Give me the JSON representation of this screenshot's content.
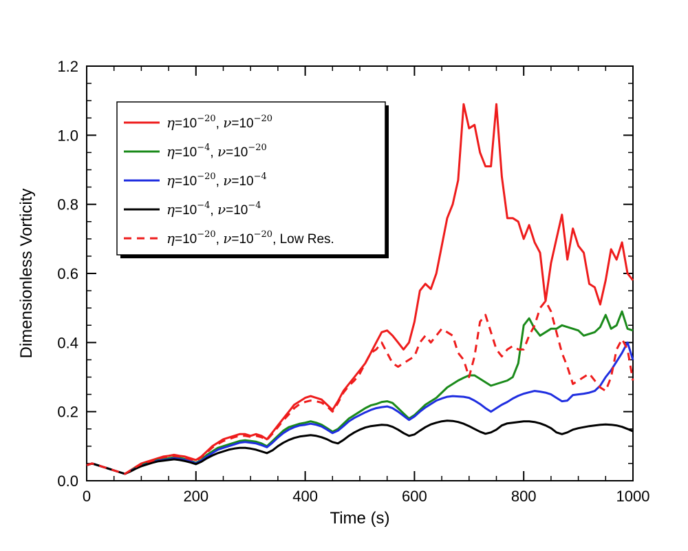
{
  "chart_data": {
    "type": "line",
    "title": "",
    "xlabel": "Time (s)",
    "ylabel": "Dimensionless Vorticity",
    "xlim": [
      0,
      1000
    ],
    "ylim": [
      0,
      1.2
    ],
    "xticks": [
      0,
      200,
      400,
      600,
      800,
      1000
    ],
    "xtick_labels": [
      "0",
      "200",
      "400",
      "600",
      "800",
      "1000"
    ],
    "yticks": [
      0,
      0.2,
      0.4,
      0.6,
      0.8,
      1.0,
      1.2
    ],
    "ytick_labels": [
      "0.0",
      "0.2",
      "0.4",
      "0.6",
      "0.8",
      "1.0",
      "1.2"
    ],
    "legend_position": "top-left",
    "series": [
      {
        "name": "η=10^-20, ν=10^-20",
        "legend": {
          "eta_exp": "−20",
          "nu_exp": "−20",
          "suffix": ""
        },
        "color": "#ee1c1c",
        "dash": "solid",
        "x": [
          0,
          10,
          20,
          30,
          40,
          50,
          60,
          70,
          80,
          90,
          100,
          110,
          120,
          130,
          140,
          150,
          160,
          170,
          180,
          190,
          200,
          210,
          220,
          230,
          240,
          250,
          260,
          270,
          280,
          290,
          300,
          310,
          320,
          330,
          340,
          350,
          360,
          370,
          380,
          390,
          400,
          410,
          420,
          430,
          440,
          450,
          460,
          470,
          480,
          490,
          500,
          510,
          520,
          530,
          540,
          550,
          560,
          570,
          580,
          590,
          600,
          610,
          620,
          630,
          640,
          650,
          660,
          670,
          680,
          690,
          700,
          710,
          720,
          730,
          740,
          750,
          760,
          770,
          780,
          790,
          800,
          810,
          820,
          830,
          840,
          850,
          860,
          870,
          880,
          890,
          900,
          910,
          920,
          930,
          940,
          950,
          960,
          970,
          980,
          990,
          1000
        ],
        "y": [
          0.045,
          0.05,
          0.045,
          0.04,
          0.035,
          0.03,
          0.025,
          0.02,
          0.03,
          0.04,
          0.05,
          0.055,
          0.06,
          0.065,
          0.07,
          0.072,
          0.075,
          0.072,
          0.07,
          0.065,
          0.06,
          0.07,
          0.085,
          0.1,
          0.11,
          0.12,
          0.125,
          0.13,
          0.135,
          0.135,
          0.13,
          0.135,
          0.13,
          0.12,
          0.14,
          0.16,
          0.18,
          0.2,
          0.22,
          0.23,
          0.24,
          0.245,
          0.24,
          0.235,
          0.22,
          0.205,
          0.23,
          0.26,
          0.28,
          0.3,
          0.32,
          0.34,
          0.37,
          0.4,
          0.43,
          0.435,
          0.42,
          0.4,
          0.38,
          0.4,
          0.46,
          0.55,
          0.57,
          0.555,
          0.6,
          0.68,
          0.76,
          0.8,
          0.87,
          1.09,
          1.02,
          1.03,
          0.95,
          0.91,
          0.91,
          1.09,
          0.88,
          0.76,
          0.76,
          0.75,
          0.7,
          0.74,
          0.69,
          0.66,
          0.52,
          0.63,
          0.7,
          0.77,
          0.64,
          0.73,
          0.68,
          0.66,
          0.57,
          0.56,
          0.51,
          0.58,
          0.67,
          0.64,
          0.69,
          0.6,
          0.58
        ]
      },
      {
        "name": "η=10^-4, ν=10^-20",
        "legend": {
          "eta_exp": "−4",
          "nu_exp": "−20",
          "suffix": ""
        },
        "color": "#1a8a1a",
        "dash": "solid",
        "x": [
          0,
          10,
          20,
          30,
          40,
          50,
          60,
          70,
          80,
          90,
          100,
          110,
          120,
          130,
          140,
          150,
          160,
          170,
          180,
          190,
          200,
          210,
          220,
          230,
          240,
          250,
          260,
          270,
          280,
          290,
          300,
          310,
          320,
          330,
          340,
          350,
          360,
          370,
          380,
          390,
          400,
          410,
          420,
          430,
          440,
          450,
          460,
          470,
          480,
          490,
          500,
          510,
          520,
          530,
          540,
          550,
          560,
          570,
          580,
          590,
          600,
          610,
          620,
          630,
          640,
          650,
          660,
          670,
          680,
          690,
          700,
          710,
          720,
          730,
          740,
          750,
          760,
          770,
          780,
          790,
          800,
          810,
          820,
          830,
          840,
          850,
          860,
          870,
          880,
          890,
          900,
          910,
          920,
          930,
          940,
          950,
          960,
          970,
          980,
          990,
          1000
        ],
        "y": [
          0.045,
          0.05,
          0.045,
          0.04,
          0.035,
          0.03,
          0.025,
          0.02,
          0.028,
          0.038,
          0.045,
          0.05,
          0.055,
          0.06,
          0.062,
          0.065,
          0.068,
          0.066,
          0.063,
          0.058,
          0.052,
          0.06,
          0.075,
          0.085,
          0.095,
          0.1,
          0.105,
          0.11,
          0.115,
          0.117,
          0.115,
          0.113,
          0.108,
          0.1,
          0.115,
          0.13,
          0.145,
          0.155,
          0.16,
          0.165,
          0.168,
          0.172,
          0.168,
          0.162,
          0.152,
          0.142,
          0.15,
          0.165,
          0.18,
          0.19,
          0.2,
          0.21,
          0.218,
          0.222,
          0.228,
          0.23,
          0.225,
          0.21,
          0.195,
          0.18,
          0.19,
          0.205,
          0.22,
          0.23,
          0.24,
          0.255,
          0.27,
          0.28,
          0.29,
          0.298,
          0.305,
          0.305,
          0.295,
          0.285,
          0.275,
          0.28,
          0.285,
          0.29,
          0.3,
          0.34,
          0.45,
          0.47,
          0.44,
          0.42,
          0.43,
          0.44,
          0.44,
          0.45,
          0.445,
          0.44,
          0.435,
          0.42,
          0.425,
          0.43,
          0.445,
          0.48,
          0.44,
          0.45,
          0.49,
          0.44,
          0.435
        ]
      },
      {
        "name": "η=10^-20, ν=10^-4",
        "legend": {
          "eta_exp": "−20",
          "nu_exp": "−4",
          "suffix": ""
        },
        "color": "#1f2ee0",
        "dash": "solid",
        "x": [
          0,
          10,
          20,
          30,
          40,
          50,
          60,
          70,
          80,
          90,
          100,
          110,
          120,
          130,
          140,
          150,
          160,
          170,
          180,
          190,
          200,
          210,
          220,
          230,
          240,
          250,
          260,
          270,
          280,
          290,
          300,
          310,
          320,
          330,
          340,
          350,
          360,
          370,
          380,
          390,
          400,
          410,
          420,
          430,
          440,
          450,
          460,
          470,
          480,
          490,
          500,
          510,
          520,
          530,
          540,
          550,
          560,
          570,
          580,
          590,
          600,
          610,
          620,
          630,
          640,
          650,
          660,
          670,
          680,
          690,
          700,
          710,
          720,
          730,
          740,
          750,
          760,
          770,
          780,
          790,
          800,
          810,
          820,
          830,
          840,
          850,
          860,
          870,
          880,
          890,
          900,
          910,
          920,
          930,
          940,
          950,
          960,
          970,
          980,
          990,
          1000
        ],
        "y": [
          0.045,
          0.05,
          0.045,
          0.04,
          0.035,
          0.03,
          0.025,
          0.02,
          0.028,
          0.036,
          0.043,
          0.048,
          0.053,
          0.058,
          0.06,
          0.062,
          0.065,
          0.063,
          0.06,
          0.056,
          0.05,
          0.058,
          0.07,
          0.08,
          0.09,
          0.095,
          0.1,
          0.105,
          0.11,
          0.112,
          0.11,
          0.108,
          0.103,
          0.097,
          0.11,
          0.125,
          0.138,
          0.148,
          0.155,
          0.16,
          0.162,
          0.165,
          0.162,
          0.157,
          0.148,
          0.138,
          0.145,
          0.158,
          0.172,
          0.182,
          0.19,
          0.198,
          0.205,
          0.21,
          0.213,
          0.215,
          0.21,
          0.2,
          0.188,
          0.176,
          0.186,
          0.2,
          0.212,
          0.222,
          0.232,
          0.238,
          0.243,
          0.245,
          0.244,
          0.243,
          0.24,
          0.232,
          0.222,
          0.21,
          0.2,
          0.21,
          0.22,
          0.228,
          0.238,
          0.246,
          0.252,
          0.256,
          0.26,
          0.258,
          0.255,
          0.25,
          0.24,
          0.23,
          0.232,
          0.248,
          0.25,
          0.252,
          0.255,
          0.26,
          0.275,
          0.3,
          0.32,
          0.345,
          0.37,
          0.4,
          0.35
        ]
      },
      {
        "name": "η=10^-4, ν=10^-4",
        "legend": {
          "eta_exp": "−4",
          "nu_exp": "−4",
          "suffix": ""
        },
        "color": "#000000",
        "dash": "solid",
        "x": [
          0,
          10,
          20,
          30,
          40,
          50,
          60,
          70,
          80,
          90,
          100,
          110,
          120,
          130,
          140,
          150,
          160,
          170,
          180,
          190,
          200,
          210,
          220,
          230,
          240,
          250,
          260,
          270,
          280,
          290,
          300,
          310,
          320,
          330,
          340,
          350,
          360,
          370,
          380,
          390,
          400,
          410,
          420,
          430,
          440,
          450,
          460,
          470,
          480,
          490,
          500,
          510,
          520,
          530,
          540,
          550,
          560,
          570,
          580,
          590,
          600,
          610,
          620,
          630,
          640,
          650,
          660,
          670,
          680,
          690,
          700,
          710,
          720,
          730,
          740,
          750,
          760,
          770,
          780,
          790,
          800,
          810,
          820,
          830,
          840,
          850,
          860,
          870,
          880,
          890,
          900,
          910,
          920,
          930,
          940,
          950,
          960,
          970,
          980,
          990,
          1000
        ],
        "y": [
          0.045,
          0.05,
          0.045,
          0.04,
          0.035,
          0.03,
          0.025,
          0.02,
          0.027,
          0.035,
          0.042,
          0.047,
          0.052,
          0.056,
          0.058,
          0.06,
          0.062,
          0.06,
          0.057,
          0.053,
          0.048,
          0.055,
          0.065,
          0.073,
          0.08,
          0.085,
          0.09,
          0.093,
          0.095,
          0.095,
          0.093,
          0.09,
          0.085,
          0.08,
          0.088,
          0.1,
          0.11,
          0.118,
          0.124,
          0.128,
          0.13,
          0.132,
          0.13,
          0.126,
          0.12,
          0.112,
          0.108,
          0.118,
          0.13,
          0.14,
          0.148,
          0.154,
          0.158,
          0.16,
          0.162,
          0.161,
          0.156,
          0.148,
          0.138,
          0.13,
          0.134,
          0.145,
          0.155,
          0.163,
          0.168,
          0.172,
          0.174,
          0.173,
          0.17,
          0.165,
          0.158,
          0.15,
          0.142,
          0.136,
          0.14,
          0.148,
          0.16,
          0.166,
          0.168,
          0.17,
          0.172,
          0.172,
          0.17,
          0.166,
          0.16,
          0.152,
          0.14,
          0.135,
          0.14,
          0.148,
          0.152,
          0.155,
          0.158,
          0.16,
          0.162,
          0.163,
          0.162,
          0.16,
          0.156,
          0.15,
          0.143
        ]
      },
      {
        "name": "η=10^-20, ν=10^-20, Low Res.",
        "legend": {
          "eta_exp": "−20",
          "nu_exp": "−20",
          "suffix": ", Low Res."
        },
        "color": "#ee1c1c",
        "dash": "dashed",
        "x": [
          0,
          10,
          20,
          30,
          40,
          50,
          60,
          70,
          80,
          90,
          100,
          110,
          120,
          130,
          140,
          150,
          160,
          170,
          180,
          190,
          200,
          210,
          220,
          230,
          240,
          250,
          260,
          270,
          280,
          290,
          300,
          310,
          320,
          330,
          340,
          350,
          360,
          370,
          380,
          390,
          400,
          410,
          420,
          430,
          440,
          450,
          460,
          470,
          480,
          490,
          500,
          510,
          520,
          530,
          540,
          550,
          560,
          570,
          580,
          590,
          600,
          610,
          620,
          630,
          640,
          650,
          660,
          670,
          680,
          690,
          700,
          710,
          720,
          730,
          740,
          750,
          760,
          770,
          780,
          790,
          800,
          810,
          820,
          830,
          840,
          850,
          860,
          870,
          880,
          890,
          900,
          910,
          920,
          930,
          940,
          950,
          960,
          970,
          980,
          990,
          1000
        ],
        "y": [
          0.045,
          0.05,
          0.045,
          0.04,
          0.035,
          0.03,
          0.025,
          0.02,
          0.03,
          0.04,
          0.048,
          0.053,
          0.058,
          0.063,
          0.068,
          0.07,
          0.072,
          0.07,
          0.067,
          0.062,
          0.058,
          0.068,
          0.082,
          0.096,
          0.106,
          0.115,
          0.12,
          0.126,
          0.13,
          0.13,
          0.127,
          0.13,
          0.126,
          0.118,
          0.136,
          0.155,
          0.175,
          0.192,
          0.21,
          0.222,
          0.228,
          0.232,
          0.23,
          0.226,
          0.215,
          0.2,
          0.225,
          0.255,
          0.275,
          0.29,
          0.31,
          0.34,
          0.37,
          0.38,
          0.4,
          0.37,
          0.34,
          0.33,
          0.34,
          0.35,
          0.36,
          0.4,
          0.42,
          0.4,
          0.42,
          0.44,
          0.43,
          0.42,
          0.37,
          0.35,
          0.3,
          0.36,
          0.46,
          0.48,
          0.43,
          0.38,
          0.36,
          0.38,
          0.39,
          0.38,
          0.38,
          0.42,
          0.45,
          0.5,
          0.52,
          0.49,
          0.43,
          0.37,
          0.33,
          0.28,
          0.29,
          0.3,
          0.31,
          0.29,
          0.27,
          0.26,
          0.3,
          0.38,
          0.41,
          0.38,
          0.29
        ]
      }
    ]
  }
}
